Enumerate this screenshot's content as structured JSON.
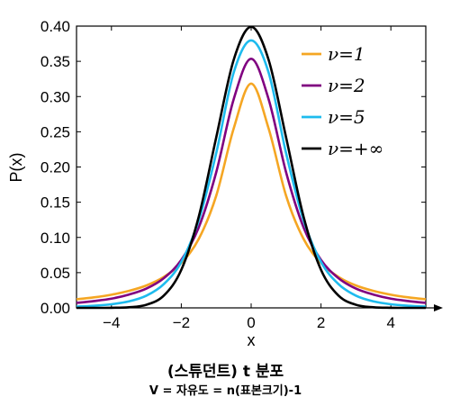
{
  "chart_data": {
    "type": "line",
    "title": "(스튜던트) t 분포",
    "subtitle": "V = 자유도 = n(표본크기)-1",
    "xlabel": "x",
    "ylabel": "P(x)",
    "xlim": [
      -5,
      5
    ],
    "ylim": [
      0.0,
      0.4
    ],
    "x_ticks": [
      -4,
      -2,
      0,
      2,
      4
    ],
    "x_tick_labels": [
      "−4",
      "−2",
      "0",
      "2",
      "4"
    ],
    "y_ticks": [
      0.0,
      0.05,
      0.1,
      0.15,
      0.2,
      0.25,
      0.3,
      0.35,
      0.4
    ],
    "y_tick_labels": [
      "0.00",
      "0.05",
      "0.10",
      "0.15",
      "0.20",
      "0.25",
      "0.30",
      "0.35",
      "0.40"
    ],
    "legend_position": "top-right",
    "grid": false,
    "x": [
      -5.0,
      -4.5,
      -4.0,
      -3.5,
      -3.0,
      -2.5,
      -2.0,
      -1.5,
      -1.0,
      -0.5,
      0.0,
      0.5,
      1.0,
      1.5,
      2.0,
      2.5,
      3.0,
      3.5,
      4.0,
      4.5,
      5.0
    ],
    "series": [
      {
        "name": "ν=1",
        "color": "#f5a623",
        "values": [
          0.0122,
          0.0149,
          0.0187,
          0.0241,
          0.0318,
          0.0439,
          0.0637,
          0.0979,
          0.1592,
          0.2546,
          0.3183,
          0.2546,
          0.1592,
          0.0979,
          0.0637,
          0.0439,
          0.0318,
          0.0241,
          0.0187,
          0.0149,
          0.0122
        ]
      },
      {
        "name": "ν=2",
        "color": "#800080",
        "values": [
          0.0071,
          0.0097,
          0.0131,
          0.0189,
          0.0274,
          0.0422,
          0.068,
          0.1143,
          0.1925,
          0.2962,
          0.3536,
          0.2962,
          0.1925,
          0.1143,
          0.068,
          0.0422,
          0.0274,
          0.0189,
          0.0131,
          0.0097,
          0.0071
        ]
      },
      {
        "name": "ν=5",
        "color": "#1ebbee",
        "values": [
          0.0018,
          0.003,
          0.0051,
          0.0092,
          0.0173,
          0.0338,
          0.0651,
          0.1245,
          0.2197,
          0.334,
          0.3796,
          0.334,
          0.2197,
          0.1245,
          0.0651,
          0.0338,
          0.0173,
          0.0092,
          0.0051,
          0.003,
          0.0018
        ]
      },
      {
        "name": "ν=+∞",
        "color": "#000000",
        "values": [
          0.0,
          0.0,
          0.0001,
          0.0009,
          0.0044,
          0.0175,
          0.054,
          0.1295,
          0.242,
          0.3521,
          0.3989,
          0.3521,
          0.242,
          0.1295,
          0.054,
          0.0175,
          0.0044,
          0.0009,
          0.0001,
          0.0,
          0.0
        ]
      }
    ]
  }
}
